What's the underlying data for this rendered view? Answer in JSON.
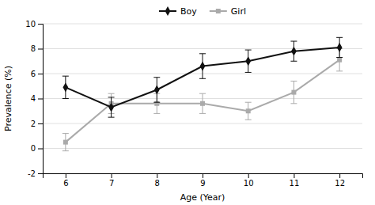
{
  "chart_data": {
    "type": "line",
    "x": [
      6,
      7,
      8,
      9,
      10,
      11,
      12
    ],
    "xlabel": "Age (Year)",
    "ylabel": "Prevalence (%)",
    "xlim": [
      5.5,
      12.5
    ],
    "xticks": [
      6,
      7,
      8,
      9,
      10,
      11,
      12
    ],
    "ylim": [
      -2,
      10
    ],
    "yticks": [
      -2,
      0,
      2,
      4,
      6,
      8,
      10
    ],
    "grid": true,
    "legend": "top",
    "series": [
      {
        "name": "Boy",
        "color": "#111111",
        "marker": "diamond",
        "values": [
          4.9,
          3.3,
          4.7,
          6.6,
          7.0,
          7.8,
          8.1
        ],
        "errors": [
          0.9,
          0.8,
          1.0,
          1.0,
          0.9,
          0.8,
          0.8
        ]
      },
      {
        "name": "Girl",
        "color": "#aaaaaa",
        "marker": "square",
        "values": [
          0.5,
          3.6,
          3.6,
          3.6,
          3.0,
          4.5,
          7.1
        ],
        "errors": [
          0.7,
          0.8,
          0.8,
          0.8,
          0.7,
          0.9,
          0.9
        ]
      }
    ]
  }
}
